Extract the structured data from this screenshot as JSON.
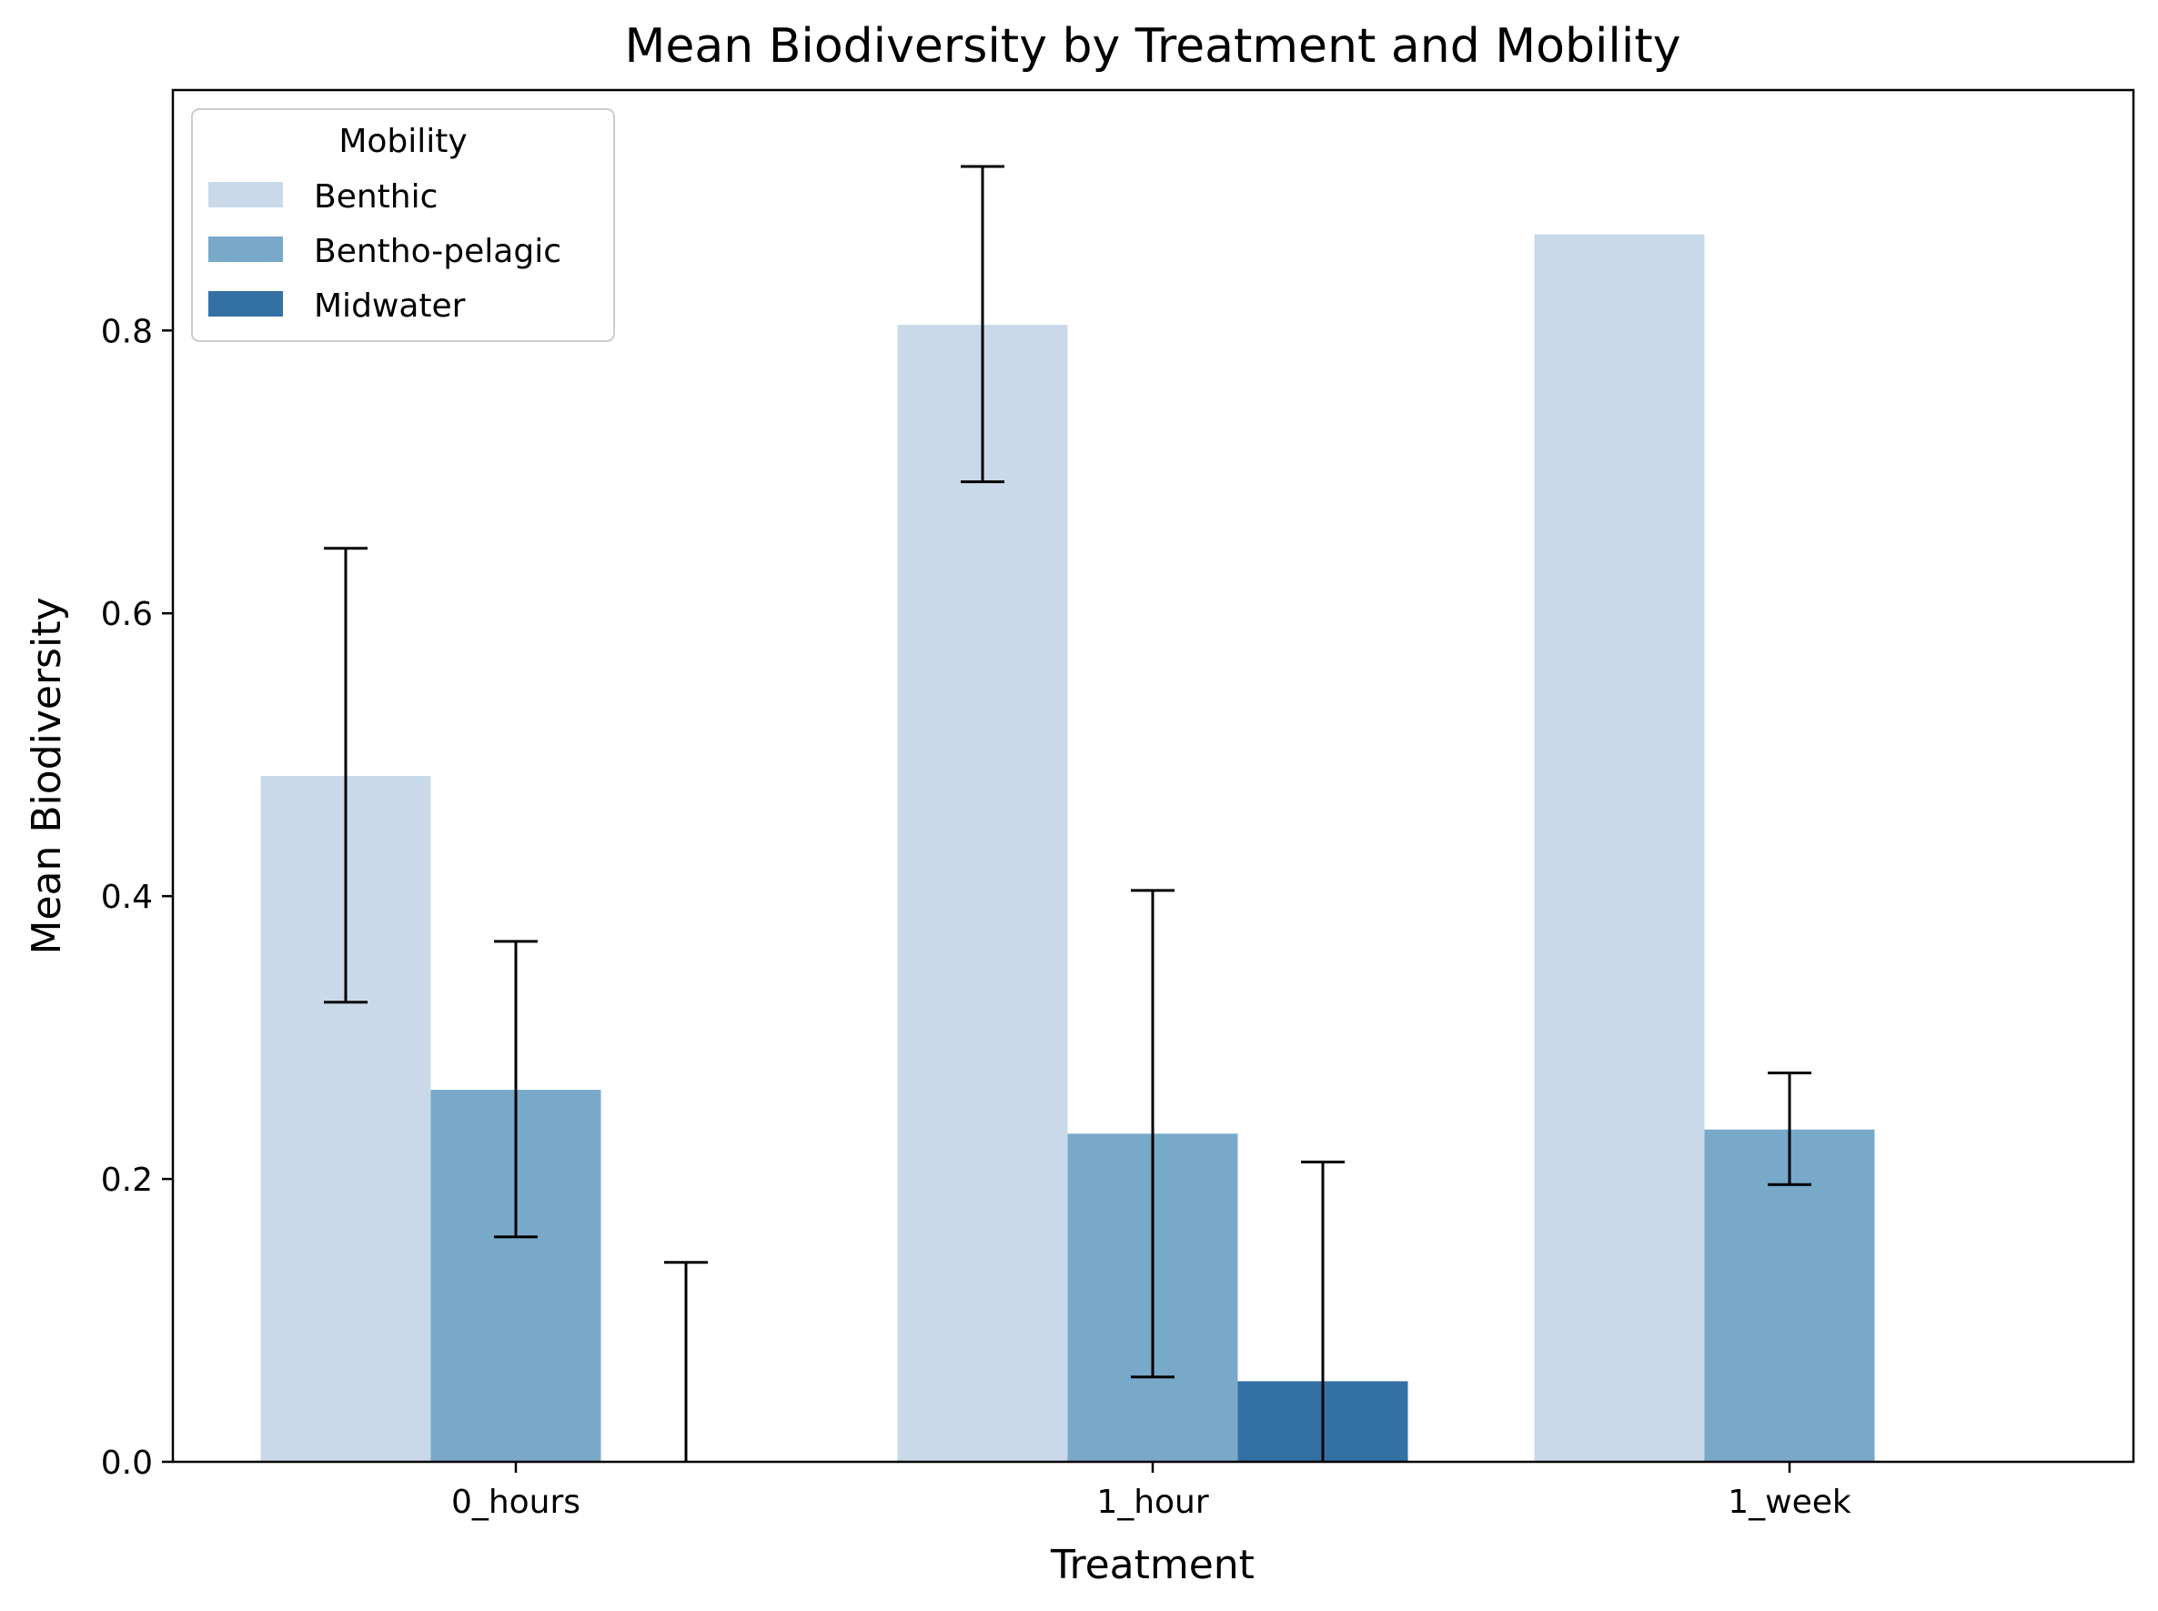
{
  "chart_data": {
    "type": "bar",
    "title": "Mean Biodiversity by Treatment and Mobility",
    "xlabel": "Treatment",
    "ylabel": "Mean Biodiversity",
    "categories": [
      "0_hours",
      "1_hour",
      "1_week"
    ],
    "ylim": [
      0,
      0.97
    ],
    "yticks": [
      0.0,
      0.2,
      0.4,
      0.6,
      0.8
    ],
    "ytick_labels": [
      "0.0",
      "0.2",
      "0.4",
      "0.6",
      "0.8"
    ],
    "grid": false,
    "legend": {
      "title": "Mobility",
      "position": "top-left"
    },
    "series": [
      {
        "name": "Benthic",
        "color": "#c9d9e9",
        "values": [
          0.485,
          0.804,
          0.868
        ],
        "error_low": [
          0.325,
          0.693,
          null
        ],
        "error_high": [
          0.646,
          0.916,
          null
        ]
      },
      {
        "name": "Bentho-pelagic",
        "color": "#78a9c9",
        "values": [
          0.263,
          0.232,
          0.235
        ],
        "error_low": [
          0.159,
          0.06,
          0.196
        ],
        "error_high": [
          0.368,
          0.404,
          0.275
        ]
      },
      {
        "name": "Midwater",
        "color": "#3371a5",
        "values": [
          0.0,
          0.057,
          null
        ],
        "error_low": [
          0.0,
          0.0,
          null
        ],
        "error_high": [
          0.141,
          0.212,
          null
        ]
      }
    ]
  }
}
